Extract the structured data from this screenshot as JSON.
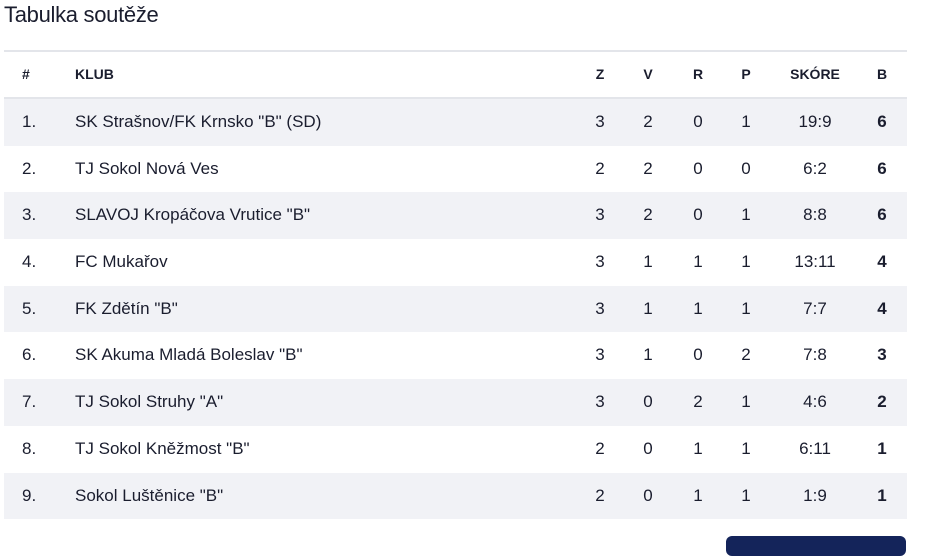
{
  "title": "Tabulka soutěže",
  "headers": {
    "pos": "#",
    "club": "KLUB",
    "z": "Z",
    "v": "V",
    "r": "R",
    "p": "P",
    "score": "SKÓRE",
    "b": "B"
  },
  "rows": [
    {
      "pos": "1.",
      "club": "SK Strašnov/FK Krnsko \"B\" (SD)",
      "z": "3",
      "v": "2",
      "r": "0",
      "p": "1",
      "score": "19:9",
      "b": "6"
    },
    {
      "pos": "2.",
      "club": "TJ Sokol Nová Ves",
      "z": "2",
      "v": "2",
      "r": "0",
      "p": "0",
      "score": "6:2",
      "b": "6"
    },
    {
      "pos": "3.",
      "club": "SLAVOJ Kropáčova Vrutice \"B\"",
      "z": "3",
      "v": "2",
      "r": "0",
      "p": "1",
      "score": "8:8",
      "b": "6"
    },
    {
      "pos": "4.",
      "club": "FC Mukařov",
      "z": "3",
      "v": "1",
      "r": "1",
      "p": "1",
      "score": "13:11",
      "b": "4"
    },
    {
      "pos": "5.",
      "club": "FK Zdětín \"B\"",
      "z": "3",
      "v": "1",
      "r": "1",
      "p": "1",
      "score": "7:7",
      "b": "4"
    },
    {
      "pos": "6.",
      "club": "SK Akuma Mladá Boleslav \"B\"",
      "z": "3",
      "v": "1",
      "r": "0",
      "p": "2",
      "score": "7:8",
      "b": "3"
    },
    {
      "pos": "7.",
      "club": "TJ Sokol Struhy \"A\"",
      "z": "3",
      "v": "0",
      "r": "2",
      "p": "1",
      "score": "4:6",
      "b": "2"
    },
    {
      "pos": "8.",
      "club": "TJ Sokol Kněžmost \"B\"",
      "z": "2",
      "v": "0",
      "r": "1",
      "p": "1",
      "score": "6:11",
      "b": "1"
    },
    {
      "pos": "9.",
      "club": "Sokol Luštěnice \"B\"",
      "z": "2",
      "v": "0",
      "r": "1",
      "p": "1",
      "score": "1:9",
      "b": "1"
    }
  ]
}
